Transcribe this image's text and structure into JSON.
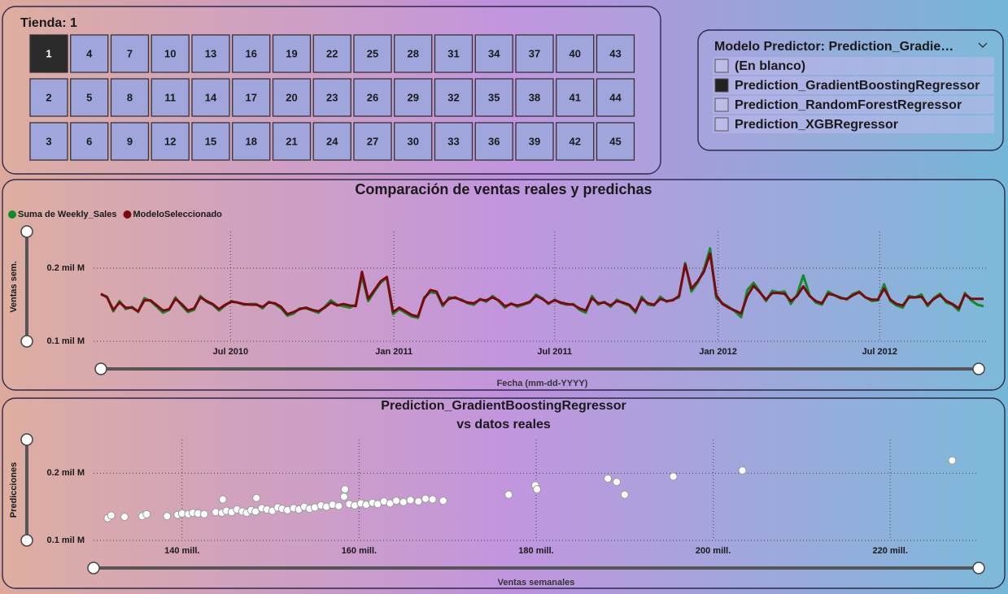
{
  "store_slicer": {
    "title": "Tienda: 1",
    "options": [
      "1",
      "2",
      "3",
      "4",
      "5",
      "6",
      "7",
      "8",
      "9",
      "10",
      "11",
      "12",
      "13",
      "14",
      "15",
      "16",
      "17",
      "18",
      "19",
      "20",
      "21",
      "22",
      "23",
      "24",
      "25",
      "26",
      "27",
      "28",
      "29",
      "30",
      "31",
      "32",
      "33",
      "34",
      "35",
      "36",
      "37",
      "38",
      "39",
      "40",
      "41",
      "42",
      "43",
      "44",
      "45"
    ],
    "selected": "1"
  },
  "model_selector": {
    "title": "Modelo Predictor: Prediction_Gradie…",
    "options": [
      "(En blanco)",
      "Prediction_GradientBoostingRegressor",
      "Prediction_RandomForestRegressor",
      "Prediction_XGBRegressor"
    ],
    "selected": "Prediction_GradientBoostingRegressor"
  },
  "chart_data": [
    {
      "type": "line",
      "title": "Comparación de ventas reales y predichas",
      "x_label": "Fecha (mm-dd-YYYY)",
      "y_label": "Ventas sem.",
      "x": [
        "02-05-2010",
        "02-12-2010",
        "02-19-2010",
        "02-26-2010",
        "03-05-2010",
        "03-12-2010",
        "03-19-2010",
        "03-26-2010",
        "04-02-2010",
        "04-09-2010",
        "04-16-2010",
        "04-23-2010",
        "04-30-2010",
        "05-07-2010",
        "05-14-2010",
        "05-21-2010",
        "05-28-2010",
        "06-04-2010",
        "06-11-2010",
        "06-18-2010",
        "06-25-2010",
        "07-02-2010",
        "07-09-2010",
        "07-16-2010",
        "07-23-2010",
        "07-30-2010",
        "08-06-2010",
        "08-13-2010",
        "08-20-2010",
        "08-27-2010",
        "09-03-2010",
        "09-10-2010",
        "09-17-2010",
        "09-24-2010",
        "10-01-2010",
        "10-08-2010",
        "10-15-2010",
        "10-22-2010",
        "10-29-2010",
        "11-05-2010",
        "11-12-2010",
        "11-19-2010",
        "11-26-2010",
        "12-03-2010",
        "12-10-2010",
        "12-17-2010",
        "12-24-2010",
        "12-31-2010",
        "01-07-2011",
        "01-14-2011",
        "01-21-2011",
        "01-28-2011",
        "02-04-2011",
        "02-11-2011",
        "02-18-2011",
        "02-25-2011",
        "03-04-2011",
        "03-11-2011",
        "03-18-2011",
        "03-25-2011",
        "04-01-2011",
        "04-08-2011",
        "04-15-2011",
        "04-22-2011",
        "04-29-2011",
        "05-06-2011",
        "05-13-2011",
        "05-20-2011",
        "05-27-2011",
        "06-03-2011",
        "06-10-2011",
        "06-17-2011",
        "06-24-2011",
        "07-01-2011",
        "07-08-2011",
        "07-15-2011",
        "07-22-2011",
        "07-29-2011",
        "08-05-2011",
        "08-12-2011",
        "08-19-2011",
        "08-26-2011",
        "09-02-2011",
        "09-09-2011",
        "09-16-2011",
        "09-23-2011",
        "09-30-2011",
        "10-07-2011",
        "10-14-2011",
        "10-21-2011",
        "10-28-2011",
        "11-04-2011",
        "11-11-2011",
        "11-18-2011",
        "11-25-2011",
        "12-02-2011",
        "12-09-2011",
        "12-16-2011",
        "12-23-2011",
        "12-30-2011",
        "01-06-2012",
        "01-13-2012",
        "01-20-2012",
        "01-27-2012",
        "02-03-2012",
        "02-10-2012",
        "02-17-2012",
        "02-24-2012",
        "03-02-2012",
        "03-09-2012",
        "03-16-2012",
        "03-23-2012",
        "03-30-2012",
        "04-06-2012",
        "04-13-2012",
        "04-20-2012",
        "04-27-2012",
        "05-04-2012",
        "05-11-2012",
        "05-18-2012",
        "05-25-2012",
        "06-01-2012",
        "06-08-2012",
        "06-15-2012",
        "06-22-2012",
        "06-29-2012",
        "07-06-2012",
        "07-13-2012",
        "07-20-2012",
        "07-27-2012",
        "08-03-2012",
        "08-10-2012",
        "08-17-2012",
        "08-24-2012",
        "08-31-2012",
        "09-07-2012",
        "09-14-2012",
        "09-21-2012",
        "09-28-2012",
        "10-05-2012",
        "10-12-2012",
        "10-19-2012",
        "10-26-2012"
      ],
      "series": [
        {
          "name": "Suma de Weekly_Sales",
          "color": "#118a2c",
          "values": [
            0.164,
            0.161,
            0.141,
            0.155,
            0.144,
            0.147,
            0.14,
            0.159,
            0.155,
            0.147,
            0.139,
            0.143,
            0.16,
            0.149,
            0.14,
            0.143,
            0.162,
            0.154,
            0.15,
            0.142,
            0.149,
            0.155,
            0.153,
            0.15,
            0.151,
            0.151,
            0.145,
            0.154,
            0.151,
            0.145,
            0.135,
            0.138,
            0.145,
            0.145,
            0.142,
            0.139,
            0.147,
            0.156,
            0.15,
            0.148,
            0.146,
            0.15,
            0.189,
            0.155,
            0.168,
            0.18,
            0.187,
            0.137,
            0.144,
            0.139,
            0.134,
            0.132,
            0.16,
            0.167,
            0.166,
            0.148,
            0.16,
            0.159,
            0.157,
            0.152,
            0.15,
            0.158,
            0.154,
            0.162,
            0.155,
            0.146,
            0.152,
            0.147,
            0.15,
            0.153,
            0.164,
            0.159,
            0.151,
            0.157,
            0.152,
            0.15,
            0.151,
            0.143,
            0.139,
            0.162,
            0.15,
            0.154,
            0.147,
            0.157,
            0.152,
            0.149,
            0.139,
            0.161,
            0.15,
            0.149,
            0.161,
            0.154,
            0.157,
            0.16,
            0.207,
            0.168,
            0.18,
            0.198,
            0.227,
            0.159,
            0.152,
            0.147,
            0.141,
            0.133,
            0.17,
            0.18,
            0.168,
            0.155,
            0.169,
            0.167,
            0.168,
            0.151,
            0.164,
            0.19,
            0.163,
            0.153,
            0.15,
            0.168,
            0.163,
            0.16,
            0.157,
            0.165,
            0.168,
            0.16,
            0.155,
            0.156,
            0.178,
            0.155,
            0.149,
            0.146,
            0.162,
            0.16,
            0.164,
            0.148,
            0.159,
            0.165,
            0.153,
            0.15,
            0.142,
            0.166,
            0.156,
            0.15,
            0.148
          ]
        },
        {
          "name": "ModeloSeleccionado",
          "color": "#7a0a0f",
          "values": [
            0.165,
            0.16,
            0.143,
            0.153,
            0.146,
            0.146,
            0.141,
            0.156,
            0.156,
            0.149,
            0.142,
            0.144,
            0.158,
            0.151,
            0.142,
            0.145,
            0.16,
            0.155,
            0.151,
            0.144,
            0.15,
            0.154,
            0.153,
            0.151,
            0.15,
            0.15,
            0.147,
            0.153,
            0.152,
            0.147,
            0.137,
            0.14,
            0.144,
            0.146,
            0.143,
            0.141,
            0.146,
            0.153,
            0.149,
            0.151,
            0.149,
            0.148,
            0.195,
            0.158,
            0.17,
            0.182,
            0.188,
            0.14,
            0.146,
            0.141,
            0.136,
            0.134,
            0.158,
            0.17,
            0.168,
            0.15,
            0.158,
            0.16,
            0.156,
            0.153,
            0.152,
            0.157,
            0.156,
            0.16,
            0.156,
            0.148,
            0.151,
            0.149,
            0.151,
            0.154,
            0.162,
            0.158,
            0.152,
            0.156,
            0.153,
            0.151,
            0.15,
            0.145,
            0.142,
            0.159,
            0.152,
            0.153,
            0.149,
            0.155,
            0.153,
            0.15,
            0.141,
            0.158,
            0.152,
            0.15,
            0.158,
            0.155,
            0.156,
            0.162,
            0.205,
            0.172,
            0.182,
            0.195,
            0.22,
            0.163,
            0.151,
            0.146,
            0.142,
            0.138,
            0.162,
            0.176,
            0.167,
            0.157,
            0.166,
            0.166,
            0.165,
            0.155,
            0.162,
            0.175,
            0.162,
            0.155,
            0.152,
            0.165,
            0.163,
            0.159,
            0.158,
            0.163,
            0.167,
            0.16,
            0.157,
            0.157,
            0.172,
            0.157,
            0.151,
            0.149,
            0.16,
            0.16,
            0.161,
            0.15,
            0.158,
            0.163,
            0.155,
            0.151,
            0.145,
            0.164,
            0.158,
            0.158,
            0.158
          ]
        }
      ],
      "xlim": [
        "02-05-2010",
        "10-26-2012"
      ],
      "xticks": [
        {
          "value": "07-01-2010",
          "label": "Jul 2010"
        },
        {
          "value": "01-01-2011",
          "label": "Jan 2011"
        },
        {
          "value": "07-01-2011",
          "label": "Jul 2011"
        },
        {
          "value": "01-01-2012",
          "label": "Jan 2012"
        },
        {
          "value": "07-01-2012",
          "label": "Jul 2012"
        }
      ],
      "ylim": [
        0.1,
        0.25
      ],
      "yticks": [
        {
          "value": 0.1,
          "label": "0.1 mil M"
        },
        {
          "value": 0.2,
          "label": "0.2 mil M"
        }
      ],
      "grid": true,
      "legend_position": "top-left"
    },
    {
      "type": "scatter",
      "title": [
        "Prediction_GradientBoostingRegressor",
        "vs datos reales"
      ],
      "x_label": "Ventas semanales",
      "y_label": "Predicciones",
      "color": "#ffffff",
      "x": [
        131.6,
        132,
        133.5,
        135.5,
        136,
        138.3,
        139.5,
        140,
        140.7,
        141.2,
        141.8,
        142.5,
        143.8,
        144.5,
        144.6,
        145,
        145.6,
        146.2,
        146.8,
        147.3,
        147.8,
        148.3,
        148.4,
        149,
        149.6,
        150.2,
        150.8,
        151.3,
        151.9,
        152.6,
        153.2,
        153.8,
        154.4,
        155,
        155.7,
        156.3,
        157,
        157.7,
        158.3,
        158.4,
        158.9,
        159.5,
        160.2,
        160.8,
        161.5,
        162.1,
        162.8,
        163.5,
        164.2,
        165,
        165.8,
        166.7,
        167.5,
        168.3,
        169.5,
        176.9,
        179.9,
        180.1,
        188.1,
        189.1,
        190,
        195.5,
        203.3,
        227
      ],
      "values": [
        0.133,
        0.137,
        0.135,
        0.136,
        0.139,
        0.136,
        0.138,
        0.14,
        0.139,
        0.141,
        0.14,
        0.139,
        0.142,
        0.141,
        0.161,
        0.144,
        0.142,
        0.146,
        0.143,
        0.141,
        0.145,
        0.143,
        0.163,
        0.148,
        0.146,
        0.144,
        0.149,
        0.147,
        0.145,
        0.148,
        0.146,
        0.15,
        0.147,
        0.149,
        0.152,
        0.15,
        0.153,
        0.151,
        0.165,
        0.176,
        0.154,
        0.152,
        0.155,
        0.153,
        0.156,
        0.154,
        0.158,
        0.155,
        0.159,
        0.157,
        0.16,
        0.158,
        0.162,
        0.161,
        0.159,
        0.168,
        0.182,
        0.176,
        0.192,
        0.187,
        0.168,
        0.195,
        0.204,
        0.219
      ],
      "xlim": [
        130,
        230
      ],
      "xticks": [
        {
          "value": 140,
          "label": "140 mill."
        },
        {
          "value": 160,
          "label": "160 mill."
        },
        {
          "value": 180,
          "label": "180 mill."
        },
        {
          "value": 200,
          "label": "200 mill."
        },
        {
          "value": 220,
          "label": "220 mill."
        }
      ],
      "ylim": [
        0.1,
        0.25
      ],
      "yticks": [
        {
          "value": 0.1,
          "label": "0.1 mil M"
        },
        {
          "value": 0.2,
          "label": "0.2 mil M"
        }
      ],
      "grid": true
    }
  ]
}
